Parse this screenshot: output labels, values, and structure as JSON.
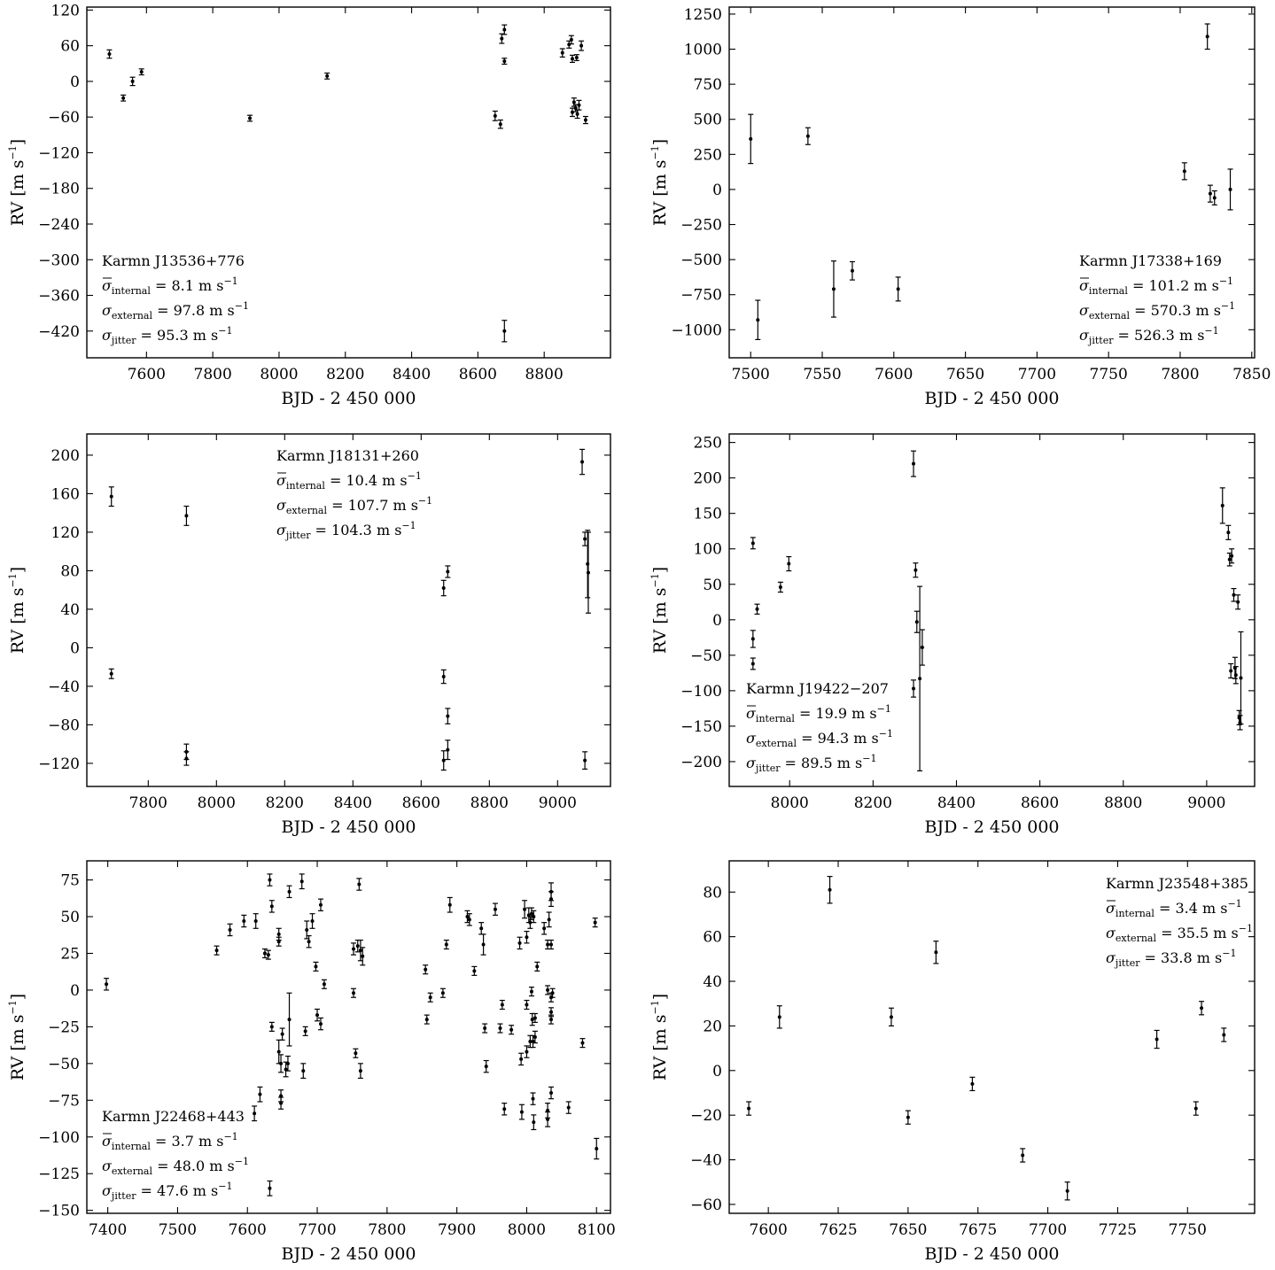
{
  "chart_data": [
    {
      "type": "scatter",
      "panel": 1,
      "xlabel": "BJD - 2 450 000",
      "ylabel": "RV [m s−1]",
      "ylabel_unit_main": "RV [m s",
      "ylabel_unit_sup": "−1",
      "ylabel_unit_close": "]",
      "xlim": [
        7420,
        9000
      ],
      "ylim": [
        -465,
        125
      ],
      "xticks": [
        7600,
        7800,
        8000,
        8200,
        8400,
        8600,
        8800
      ],
      "yticks": [
        120,
        60,
        0,
        -60,
        -120,
        -180,
        -240,
        -300,
        -360,
        -420
      ],
      "annotation": {
        "position": "bottom-left",
        "title": "Karmn J13536+776",
        "internal": "= 8.1 m s",
        "external": "= 97.8 m s",
        "jitter": "= 95.3 m s"
      },
      "points": [
        {
          "x": 7488,
          "y": 46,
          "e": 7
        },
        {
          "x": 7530,
          "y": -28,
          "e": 5
        },
        {
          "x": 7558,
          "y": 0,
          "e": 7
        },
        {
          "x": 7585,
          "y": 16,
          "e": 5
        },
        {
          "x": 7912,
          "y": -62,
          "e": 5
        },
        {
          "x": 8145,
          "y": 9,
          "e": 5
        },
        {
          "x": 8652,
          "y": -58,
          "e": 8
        },
        {
          "x": 8668,
          "y": -72,
          "e": 7
        },
        {
          "x": 8672,
          "y": 72,
          "e": 8
        },
        {
          "x": 8680,
          "y": 87,
          "e": 8
        },
        {
          "x": 8680,
          "y": 34,
          "e": 5
        },
        {
          "x": 8680,
          "y": -420,
          "e": 18
        },
        {
          "x": 8855,
          "y": 48,
          "e": 7
        },
        {
          "x": 8875,
          "y": 62,
          "e": 6
        },
        {
          "x": 8882,
          "y": 70,
          "e": 7
        },
        {
          "x": 8885,
          "y": 38,
          "e": 6
        },
        {
          "x": 8885,
          "y": -52,
          "e": 7
        },
        {
          "x": 8890,
          "y": -35,
          "e": 7
        },
        {
          "x": 8895,
          "y": -45,
          "e": 6
        },
        {
          "x": 8898,
          "y": 40,
          "e": 5
        },
        {
          "x": 8900,
          "y": -55,
          "e": 7
        },
        {
          "x": 8905,
          "y": -40,
          "e": 8
        },
        {
          "x": 8912,
          "y": 60,
          "e": 8
        },
        {
          "x": 8925,
          "y": -65,
          "e": 6
        }
      ]
    },
    {
      "type": "scatter",
      "panel": 2,
      "xlabel": "BJD - 2 450 000",
      "ylabel": "RV [m s−1]",
      "ylabel_unit_main": "RV [m s",
      "ylabel_unit_sup": "−1",
      "ylabel_unit_close": "]",
      "xlim": [
        7485,
        7852
      ],
      "ylim": [
        -1200,
        1300
      ],
      "xticks": [
        7500,
        7550,
        7600,
        7650,
        7700,
        7750,
        7800,
        7850
      ],
      "yticks": [
        1250,
        1000,
        750,
        500,
        250,
        0,
        -250,
        -500,
        -750,
        -1000
      ],
      "annotation": {
        "position": "bottom-right",
        "title": "Karmn J17338+169",
        "internal": "= 101.2 m s",
        "external": "= 570.3 m s",
        "jitter": "= 526.3 m s"
      },
      "points": [
        {
          "x": 7500,
          "y": 360,
          "e": 175
        },
        {
          "x": 7505,
          "y": -930,
          "e": 140
        },
        {
          "x": 7540,
          "y": 380,
          "e": 60
        },
        {
          "x": 7558,
          "y": -710,
          "e": 200
        },
        {
          "x": 7571,
          "y": -580,
          "e": 65
        },
        {
          "x": 7603,
          "y": -710,
          "e": 85
        },
        {
          "x": 7803,
          "y": 130,
          "e": 60
        },
        {
          "x": 7819,
          "y": 1090,
          "e": 90
        },
        {
          "x": 7821,
          "y": -30,
          "e": 60
        },
        {
          "x": 7824,
          "y": -60,
          "e": 50
        },
        {
          "x": 7835,
          "y": 0,
          "e": 145
        }
      ]
    },
    {
      "type": "scatter",
      "panel": 3,
      "xlabel": "BJD - 2 450 000",
      "ylabel": "RV [m s−1]",
      "ylabel_unit_main": "RV [m s",
      "ylabel_unit_sup": "−1",
      "ylabel_unit_close": "]",
      "xlim": [
        7620,
        9155
      ],
      "ylim": [
        -144,
        222
      ],
      "xticks": [
        7800,
        8000,
        8200,
        8400,
        8600,
        8800,
        9000
      ],
      "yticks": [
        200,
        160,
        120,
        80,
        40,
        0,
        -40,
        -80,
        -120
      ],
      "annotation": {
        "position": "top-center",
        "title": "Karmn J18131+260",
        "internal": "= 10.4 m s",
        "external": "= 107.7 m s",
        "jitter": "= 104.3 m s"
      },
      "points": [
        {
          "x": 7692,
          "y": 157,
          "e": 10
        },
        {
          "x": 7692,
          "y": -27,
          "e": 5
        },
        {
          "x": 7912,
          "y": 137,
          "e": 10
        },
        {
          "x": 7912,
          "y": -108,
          "e": 8
        },
        {
          "x": 7912,
          "y": -115,
          "e": 7
        },
        {
          "x": 8666,
          "y": 62,
          "e": 8
        },
        {
          "x": 8666,
          "y": -30,
          "e": 7
        },
        {
          "x": 8666,
          "y": -117,
          "e": 10
        },
        {
          "x": 8678,
          "y": 79,
          "e": 6
        },
        {
          "x": 8678,
          "y": -71,
          "e": 8
        },
        {
          "x": 8678,
          "y": -106,
          "e": 10
        },
        {
          "x": 9072,
          "y": 193,
          "e": 13
        },
        {
          "x": 9080,
          "y": 113,
          "e": 7
        },
        {
          "x": 9080,
          "y": -117,
          "e": 9
        },
        {
          "x": 9088,
          "y": 87,
          "e": 35
        },
        {
          "x": 9090,
          "y": 78,
          "e": 42
        }
      ]
    },
    {
      "type": "scatter",
      "panel": 4,
      "xlabel": "BJD - 2 450 000",
      "ylabel": "RV [m s−1]",
      "ylabel_unit_main": "RV [m s",
      "ylabel_unit_sup": "−1",
      "ylabel_unit_close": "]",
      "xlim": [
        7855,
        9115
      ],
      "ylim": [
        -235,
        262
      ],
      "xticks": [
        8000,
        8200,
        8400,
        8600,
        8800,
        9000
      ],
      "yticks": [
        250,
        200,
        150,
        100,
        50,
        0,
        -50,
        -100,
        -150,
        -200
      ],
      "annotation": {
        "position": "bottom-left",
        "title": "Karmn J19422−207",
        "internal": "= 19.9 m s",
        "external": "= 94.3 m s",
        "jitter": "= 89.5 m s"
      },
      "points": [
        {
          "x": 7912,
          "y": 108,
          "e": 8
        },
        {
          "x": 7912,
          "y": -27,
          "e": 12
        },
        {
          "x": 7912,
          "y": -62,
          "e": 8
        },
        {
          "x": 7922,
          "y": 15,
          "e": 7
        },
        {
          "x": 7978,
          "y": 46,
          "e": 7
        },
        {
          "x": 7998,
          "y": 79,
          "e": 10
        },
        {
          "x": 8297,
          "y": 220,
          "e": 18
        },
        {
          "x": 8297,
          "y": -97,
          "e": 12
        },
        {
          "x": 8302,
          "y": 70,
          "e": 10
        },
        {
          "x": 8305,
          "y": -3,
          "e": 15
        },
        {
          "x": 8312,
          "y": -83,
          "e": 130
        },
        {
          "x": 8318,
          "y": -39,
          "e": 25
        },
        {
          "x": 9038,
          "y": 161,
          "e": 25
        },
        {
          "x": 9052,
          "y": 123,
          "e": 10
        },
        {
          "x": 9055,
          "y": 85,
          "e": 9
        },
        {
          "x": 9058,
          "y": -72,
          "e": 10
        },
        {
          "x": 9060,
          "y": 90,
          "e": 10
        },
        {
          "x": 9065,
          "y": 35,
          "e": 9
        },
        {
          "x": 9068,
          "y": -68,
          "e": 15
        },
        {
          "x": 9070,
          "y": -78,
          "e": 12
        },
        {
          "x": 9075,
          "y": 25,
          "e": 10
        },
        {
          "x": 9078,
          "y": -138,
          "e": 10
        },
        {
          "x": 9080,
          "y": -145,
          "e": 10
        },
        {
          "x": 9082,
          "y": -82,
          "e": 65
        }
      ]
    },
    {
      "type": "scatter",
      "panel": 5,
      "xlabel": "BJD - 2 450 000",
      "ylabel": "RV [m s−1]",
      "ylabel_unit_main": "RV [m s",
      "ylabel_unit_sup": "−1",
      "ylabel_unit_close": "]",
      "xlim": [
        7370,
        8120
      ],
      "ylim": [
        -152,
        88
      ],
      "xticks": [
        7400,
        7500,
        7600,
        7700,
        7800,
        7900,
        8000,
        8100
      ],
      "yticks": [
        75,
        50,
        25,
        0,
        -25,
        -50,
        -75,
        -100,
        -125,
        -150
      ],
      "annotation": {
        "position": "bottom-left",
        "title": "Karmn J22468+443",
        "internal": "= 3.7 m s",
        "external": "= 48.0 m s",
        "jitter": "= 47.6 m s"
      },
      "points": [
        {
          "x": 7398,
          "y": 4,
          "e": 4
        },
        {
          "x": 7556,
          "y": 27,
          "e": 3
        },
        {
          "x": 7575,
          "y": 41,
          "e": 4
        },
        {
          "x": 7595,
          "y": 47,
          "e": 4
        },
        {
          "x": 7610,
          "y": -84,
          "e": 5
        },
        {
          "x": 7612,
          "y": 47,
          "e": 5
        },
        {
          "x": 7618,
          "y": -71,
          "e": 5
        },
        {
          "x": 7625,
          "y": 25,
          "e": 3
        },
        {
          "x": 7630,
          "y": 24,
          "e": 3
        },
        {
          "x": 7632,
          "y": 75,
          "e": 4
        },
        {
          "x": 7635,
          "y": 57,
          "e": 4
        },
        {
          "x": 7635,
          "y": -25,
          "e": 3
        },
        {
          "x": 7632,
          "y": -135,
          "e": 5
        },
        {
          "x": 7645,
          "y": 38,
          "e": 4
        },
        {
          "x": 7645,
          "y": 33,
          "e": 3
        },
        {
          "x": 7645,
          "y": -42,
          "e": 8
        },
        {
          "x": 7648,
          "y": -50,
          "e": 6
        },
        {
          "x": 7648,
          "y": -72,
          "e": 4
        },
        {
          "x": 7648,
          "y": -77,
          "e": 4
        },
        {
          "x": 7650,
          "y": -30,
          "e": 4
        },
        {
          "x": 7655,
          "y": -54,
          "e": 5
        },
        {
          "x": 7658,
          "y": -50,
          "e": 5
        },
        {
          "x": 7660,
          "y": -20,
          "e": 18
        },
        {
          "x": 7660,
          "y": 67,
          "e": 4
        },
        {
          "x": 7678,
          "y": 74,
          "e": 5
        },
        {
          "x": 7680,
          "y": -55,
          "e": 5
        },
        {
          "x": 7683,
          "y": -28,
          "e": 3
        },
        {
          "x": 7685,
          "y": 41,
          "e": 6
        },
        {
          "x": 7688,
          "y": 33,
          "e": 4
        },
        {
          "x": 7693,
          "y": 47,
          "e": 5
        },
        {
          "x": 7698,
          "y": 16,
          "e": 3
        },
        {
          "x": 7700,
          "y": -17,
          "e": 4
        },
        {
          "x": 7705,
          "y": 58,
          "e": 4
        },
        {
          "x": 7705,
          "y": -23,
          "e": 4
        },
        {
          "x": 7710,
          "y": 4,
          "e": 3
        },
        {
          "x": 7752,
          "y": 28,
          "e": 4
        },
        {
          "x": 7752,
          "y": -2,
          "e": 3
        },
        {
          "x": 7755,
          "y": -43,
          "e": 3
        },
        {
          "x": 7758,
          "y": 30,
          "e": 4
        },
        {
          "x": 7760,
          "y": 72,
          "e": 4
        },
        {
          "x": 7762,
          "y": -55,
          "e": 5
        },
        {
          "x": 7762,
          "y": 27,
          "e": 7
        },
        {
          "x": 7765,
          "y": 23,
          "e": 6
        },
        {
          "x": 7855,
          "y": 14,
          "e": 3
        },
        {
          "x": 7857,
          "y": -20,
          "e": 3
        },
        {
          "x": 7862,
          "y": -5,
          "e": 3
        },
        {
          "x": 7880,
          "y": -2,
          "e": 3
        },
        {
          "x": 7885,
          "y": 31,
          "e": 3
        },
        {
          "x": 7890,
          "y": 58,
          "e": 5
        },
        {
          "x": 7915,
          "y": 50,
          "e": 4
        },
        {
          "x": 7918,
          "y": 48,
          "e": 4
        },
        {
          "x": 7925,
          "y": 13,
          "e": 3
        },
        {
          "x": 7935,
          "y": 42,
          "e": 4
        },
        {
          "x": 7938,
          "y": 31,
          "e": 7
        },
        {
          "x": 7940,
          "y": -26,
          "e": 3
        },
        {
          "x": 7942,
          "y": -52,
          "e": 4
        },
        {
          "x": 7955,
          "y": 55,
          "e": 4
        },
        {
          "x": 7962,
          "y": -26,
          "e": 3
        },
        {
          "x": 7965,
          "y": -10,
          "e": 3
        },
        {
          "x": 7968,
          "y": -81,
          "e": 4
        },
        {
          "x": 7978,
          "y": -27,
          "e": 3
        },
        {
          "x": 7990,
          "y": 32,
          "e": 4
        },
        {
          "x": 7992,
          "y": -47,
          "e": 4
        },
        {
          "x": 7993,
          "y": -83,
          "e": 5
        },
        {
          "x": 7997,
          "y": 55,
          "e": 6
        },
        {
          "x": 8000,
          "y": 36,
          "e": 4
        },
        {
          "x": 8000,
          "y": -10,
          "e": 3
        },
        {
          "x": 8000,
          "y": -42,
          "e": 4
        },
        {
          "x": 8003,
          "y": 51,
          "e": 5
        },
        {
          "x": 8005,
          "y": -35,
          "e": 4
        },
        {
          "x": 8005,
          "y": 46,
          "e": 4
        },
        {
          "x": 8007,
          "y": 52,
          "e": 4
        },
        {
          "x": 8007,
          "y": -1,
          "e": 3
        },
        {
          "x": 8008,
          "y": -20,
          "e": 4
        },
        {
          "x": 8009,
          "y": -35,
          "e": 4
        },
        {
          "x": 8009,
          "y": -74,
          "e": 4
        },
        {
          "x": 8010,
          "y": 50,
          "e": 4
        },
        {
          "x": 8010,
          "y": -90,
          "e": 5
        },
        {
          "x": 8012,
          "y": -19,
          "e": 3
        },
        {
          "x": 8012,
          "y": -32,
          "e": 4
        },
        {
          "x": 8015,
          "y": 16,
          "e": 3
        },
        {
          "x": 8025,
          "y": 42,
          "e": 4
        },
        {
          "x": 8030,
          "y": 31,
          "e": 3
        },
        {
          "x": 8030,
          "y": 0,
          "e": 3
        },
        {
          "x": 8030,
          "y": -82,
          "e": 5
        },
        {
          "x": 8030,
          "y": -88,
          "e": 5
        },
        {
          "x": 8032,
          "y": 48,
          "e": 5
        },
        {
          "x": 8035,
          "y": 67,
          "e": 6
        },
        {
          "x": 8035,
          "y": 62,
          "e": 5
        },
        {
          "x": 8035,
          "y": 31,
          "e": 3
        },
        {
          "x": 8035,
          "y": -5,
          "e": 3
        },
        {
          "x": 8035,
          "y": -15,
          "e": 3
        },
        {
          "x": 8035,
          "y": -20,
          "e": 3
        },
        {
          "x": 8035,
          "y": -70,
          "e": 4
        },
        {
          "x": 8037,
          "y": -2,
          "e": 3
        },
        {
          "x": 8060,
          "y": -80,
          "e": 4
        },
        {
          "x": 8080,
          "y": -36,
          "e": 3
        },
        {
          "x": 8098,
          "y": 46,
          "e": 3
        },
        {
          "x": 8100,
          "y": -108,
          "e": 7
        }
      ]
    },
    {
      "type": "scatter",
      "panel": 6,
      "xlabel": "BJD - 2 450 000",
      "ylabel": "RV [m s−1]",
      "ylabel_unit_main": "RV [m s",
      "ylabel_unit_sup": "−1",
      "ylabel_unit_close": "]",
      "xlim": [
        7586,
        7774
      ],
      "ylim": [
        -64,
        94
      ],
      "xticks": [
        7600,
        7625,
        7650,
        7675,
        7700,
        7725,
        7750
      ],
      "yticks": [
        80,
        60,
        40,
        20,
        0,
        -20,
        -40,
        -60
      ],
      "annotation": {
        "position": "top-right",
        "title": "Karmn J23548+385",
        "internal": "= 3.4 m s",
        "external": "= 35.5 m s",
        "jitter": "= 33.8 m s"
      },
      "points": [
        {
          "x": 7593,
          "y": -17,
          "e": 3
        },
        {
          "x": 7604,
          "y": 24,
          "e": 5
        },
        {
          "x": 7622,
          "y": 81,
          "e": 6
        },
        {
          "x": 7644,
          "y": 24,
          "e": 4
        },
        {
          "x": 7650,
          "y": -21,
          "e": 3
        },
        {
          "x": 7660,
          "y": 53,
          "e": 5
        },
        {
          "x": 7673,
          "y": -6,
          "e": 3
        },
        {
          "x": 7691,
          "y": -38,
          "e": 3
        },
        {
          "x": 7707,
          "y": -54,
          "e": 4
        },
        {
          "x": 7739,
          "y": 14,
          "e": 4
        },
        {
          "x": 7753,
          "y": -17,
          "e": 3
        },
        {
          "x": 7755,
          "y": 28,
          "e": 3
        },
        {
          "x": 7763,
          "y": 16,
          "e": 3
        }
      ]
    }
  ]
}
